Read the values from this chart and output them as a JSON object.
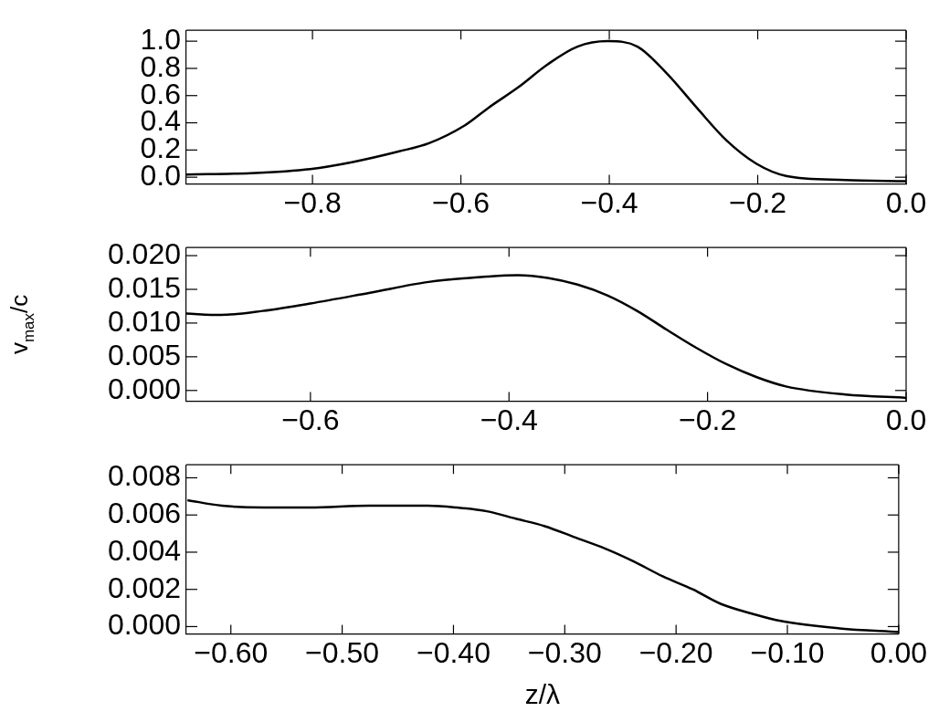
{
  "chart_data": [
    {
      "type": "line",
      "xlim": [
        -0.97,
        0
      ],
      "ylim": [
        -0.05,
        1.08
      ],
      "xticks": [
        {
          "value": -0.8,
          "label": "−0.8"
        },
        {
          "value": -0.6,
          "label": "−0.6"
        },
        {
          "value": -0.4,
          "label": "−0.4"
        },
        {
          "value": -0.2,
          "label": "−0.2"
        },
        {
          "value": 0,
          "label": "0.0"
        }
      ],
      "yticks": [
        {
          "value": 0,
          "label": "0.0"
        },
        {
          "value": 0.2,
          "label": "0.2"
        },
        {
          "value": 0.4,
          "label": "0.4"
        },
        {
          "value": 0.6,
          "label": "0.6"
        },
        {
          "value": 0.8,
          "label": "0.8"
        },
        {
          "value": 1,
          "label": "1.0"
        }
      ],
      "marker": "none",
      "line_style": "solid",
      "series": [
        {
          "color": "#000000",
          "x": [
            -0.97,
            -0.883,
            -0.803,
            -0.747,
            -0.683,
            -0.643,
            -0.595,
            -0.563,
            -0.523,
            -0.483,
            -0.443,
            -0.402,
            -0.362,
            -0.322,
            -0.282,
            -0.242,
            -0.202,
            -0.162,
            -0.082,
            0
          ],
          "values": [
            0.02,
            0.03,
            0.06,
            0.11,
            0.19,
            0.25,
            0.38,
            0.51,
            0.66,
            0.83,
            0.96,
            1.0,
            0.96,
            0.76,
            0.51,
            0.27,
            0.1,
            0.01,
            -0.02,
            -0.03
          ]
        }
      ]
    },
    {
      "type": "line",
      "ylabel": "v$_{max}$/c",
      "xlim": [
        -0.725,
        0
      ],
      "ylim": [
        -0.0016,
        0.0212
      ],
      "xticks": [
        {
          "value": -0.6,
          "label": "−0.6"
        },
        {
          "value": -0.4,
          "label": "−0.4"
        },
        {
          "value": -0.2,
          "label": "−0.2"
        },
        {
          "value": 0,
          "label": "0.0"
        }
      ],
      "yticks": [
        {
          "value": 0,
          "label": "0.000"
        },
        {
          "value": 0.005,
          "label": "0.005"
        },
        {
          "value": 0.01,
          "label": "0.010"
        },
        {
          "value": 0.015,
          "label": "0.015"
        },
        {
          "value": 0.02,
          "label": "0.020"
        }
      ],
      "marker": "none",
      "line_style": "solid",
      "series": [
        {
          "color": "#000000",
          "x": [
            -0.725,
            -0.69,
            -0.648,
            -0.6,
            -0.54,
            -0.481,
            -0.421,
            -0.391,
            -0.361,
            -0.331,
            -0.301,
            -0.271,
            -0.241,
            -0.211,
            -0.181,
            -0.151,
            -0.121,
            -0.061,
            0
          ],
          "values": [
            0.0114,
            0.0112,
            0.0118,
            0.0129,
            0.0145,
            0.0161,
            0.0169,
            0.0171,
            0.0167,
            0.0157,
            0.0141,
            0.0118,
            0.009,
            0.0063,
            0.0039,
            0.002,
            0.0006,
            -0.0006,
            -0.0011
          ]
        }
      ]
    },
    {
      "type": "line",
      "xlabel": "z/λ",
      "xlim": [
        -0.64,
        0
      ],
      "ylim": [
        -0.0004,
        0.0087
      ],
      "xticks": [
        {
          "value": -0.6,
          "label": "−0.60"
        },
        {
          "value": -0.5,
          "label": "−0.50"
        },
        {
          "value": -0.4,
          "label": "−0.40"
        },
        {
          "value": -0.3,
          "label": "−0.30"
        },
        {
          "value": -0.2,
          "label": "−0.20"
        },
        {
          "value": -0.1,
          "label": "−0.10"
        },
        {
          "value": 0,
          "label": "0.00"
        }
      ],
      "yticks": [
        {
          "value": 0,
          "label": "0.000"
        },
        {
          "value": 0.002,
          "label": "0.002"
        },
        {
          "value": 0.004,
          "label": "0.004"
        },
        {
          "value": 0.006,
          "label": "0.006"
        },
        {
          "value": 0.008,
          "label": "0.008"
        }
      ],
      "marker": "none",
      "line_style": "solid",
      "series": [
        {
          "color": "#000000",
          "x": [
            -0.639,
            -0.608,
            -0.571,
            -0.529,
            -0.476,
            -0.423,
            -0.397,
            -0.37,
            -0.344,
            -0.318,
            -0.291,
            -0.264,
            -0.238,
            -0.212,
            -0.185,
            -0.159,
            -0.132,
            -0.106,
            -0.053,
            0
          ],
          "values": [
            0.0068,
            0.0065,
            0.0064,
            0.0064,
            0.0065,
            0.0065,
            0.0064,
            0.0062,
            0.0058,
            0.0054,
            0.0048,
            0.0042,
            0.0035,
            0.0027,
            0.002,
            0.0012,
            0.0007,
            0.0003,
            -0.0001,
            -0.0003
          ]
        }
      ]
    }
  ]
}
